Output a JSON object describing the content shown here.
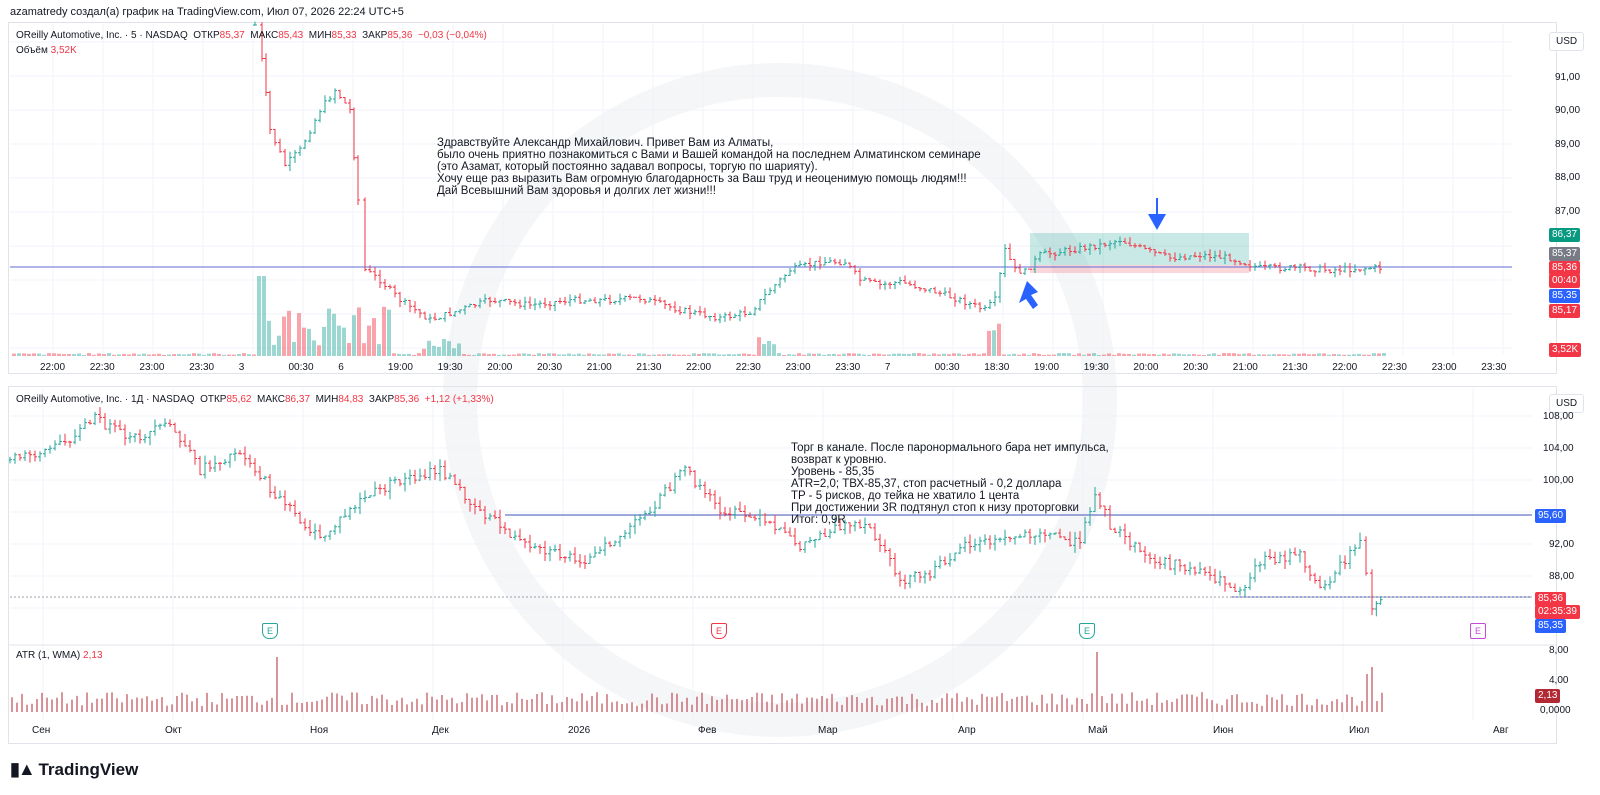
{
  "header": {
    "caption": "azamatredy создал(а) график на TradingView.com, Июл 07, 2026 22:24 UTC+5"
  },
  "top_chart": {
    "symbol": "OReilly Automotive, Inc. · 5 · NASDAQ",
    "open_label": "ОТКР",
    "open": "85,37",
    "high_label": "МАКС",
    "high": "85,43",
    "low_label": "МИН",
    "low": "85,33",
    "close_label": "ЗАКР",
    "close": "85,36",
    "change": "−0,03 (−0,04%)",
    "volume_label": "Объём",
    "volume": "3,52K",
    "currency": "USD",
    "price_axis": [
      "91,00",
      "90,00",
      "89,00",
      "88,00",
      "87,00"
    ],
    "tags": {
      "target": "86,37",
      "high": "85,37",
      "last": "85,36",
      "timer": "00:40",
      "stop": "85,35",
      "low": "85,17",
      "vol": "3,52K"
    },
    "time_axis": [
      "22:00",
      "22:30",
      "23:00",
      "23:30",
      "3",
      "00:30",
      "6",
      "19:00",
      "19:30",
      "20:00",
      "20:30",
      "21:00",
      "21:30",
      "22:00",
      "22:30",
      "23:00",
      "23:30",
      "7",
      "00:30",
      "18:30",
      "19:00",
      "19:30",
      "20:00",
      "20:30",
      "21:00",
      "21:30",
      "22:00",
      "22:30",
      "23:00",
      "23:30"
    ],
    "note": [
      "Здравствуйте Александр Михайлович. Привет Вам из Алматы,",
      "было очень приятно познакомиться с Вами и Вашей командой на последнем Алматинском семинаре",
      "(это Азамат, который постоянно задавал вопросы, торгую по шарияту).",
      "Хочу еще раз выразить Вам огромную благодарность за Ваш труд и неоценимую помощь людям!!!",
      "Дай Всевышний Вам здоровья и долгих лет жизни!!!"
    ]
  },
  "bottom_chart": {
    "symbol": "OReilly Automotive, Inc. · 1Д · NASDAQ",
    "open_label": "ОТКР",
    "open": "85,62",
    "high_label": "МАКС",
    "high": "86,37",
    "low_label": "МИН",
    "low": "84,83",
    "close_label": "ЗАКР",
    "close": "85,36",
    "change": "+1,12 (+1,33%)",
    "currency": "USD",
    "price_axis": [
      "108,00",
      "104,00",
      "100,00",
      "92,00",
      "88,00"
    ],
    "tags": {
      "level": "95,60",
      "last": "85,36",
      "timer": "02:35:39",
      "stop": "85,35"
    },
    "earnings_marker": "E",
    "note": [
      "Торг в канале. После паронормального бара нет импульса,",
      "возврат к уровню.",
      "Уровень - 85,35",
      "ATR=2,0; ТВХ-85,37, стоп расчетный - 0,2 доллара",
      "TP - 5 рисков, до тейка не хватило 1 цента",
      "При достижении 3R подтянул стоп к низу проторговки",
      "Итог: 0,9R"
    ],
    "atr_label": "ATR (1, WMA)",
    "atr_value": "2,13",
    "atr_axis": [
      "8,00",
      "4,00",
      "0,0000"
    ],
    "time_axis": [
      "Сен",
      "Окт",
      "Ноя",
      "Дек",
      "2026",
      "Фев",
      "Мар",
      "Апр",
      "Май",
      "Июн",
      "Июл",
      "Авг"
    ]
  },
  "brand": {
    "logo_text": "TradingView"
  },
  "colors": {
    "up": "#26a69a",
    "down": "#f23645",
    "level": "#5b6bd6",
    "blue_tag": "#2962ff",
    "dark_tag": "#131722"
  }
}
